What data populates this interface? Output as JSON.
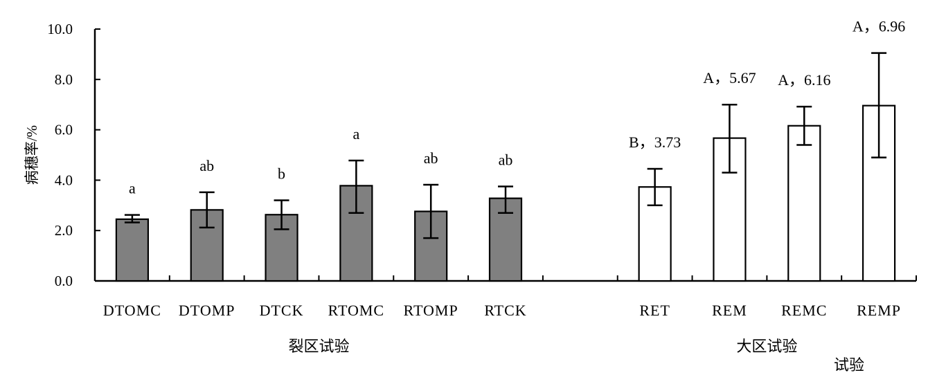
{
  "chart_data": {
    "type": "bar",
    "ylabel": "病穗率/%",
    "xlabel": "试验",
    "ylim": [
      0,
      10
    ],
    "yticks": [
      "0.0",
      "2.0",
      "4.0",
      "6.0",
      "8.0",
      "10.0"
    ],
    "grid": false,
    "groups": [
      {
        "label": "裂区试验",
        "fill": "#808080",
        "bars": [
          {
            "category": "DTOMC",
            "value": 2.45,
            "err_low": 2.32,
            "err_high": 2.62,
            "label": "a"
          },
          {
            "category": "DTOMP",
            "value": 2.82,
            "err_low": 2.12,
            "err_high": 3.52,
            "label": "ab"
          },
          {
            "category": "DTCK",
            "value": 2.63,
            "err_low": 2.05,
            "err_high": 3.2,
            "label": "b"
          },
          {
            "category": "RTOMC",
            "value": 3.78,
            "err_low": 2.7,
            "err_high": 4.78,
            "label": "a"
          },
          {
            "category": "RTOMP",
            "value": 2.76,
            "err_low": 1.7,
            "err_high": 3.82,
            "label": "ab"
          },
          {
            "category": "RTCK",
            "value": 3.28,
            "err_low": 2.7,
            "err_high": 3.75,
            "label": "ab"
          }
        ]
      },
      {
        "label": "大区试验",
        "fill": "#ffffff",
        "bars": [
          {
            "category": "RET",
            "value": 3.73,
            "err_low": 3.0,
            "err_high": 4.45,
            "label": "B，3.73"
          },
          {
            "category": "REM",
            "value": 5.67,
            "err_low": 4.3,
            "err_high": 7.0,
            "label": "A，5.67"
          },
          {
            "category": "REMC",
            "value": 6.16,
            "err_low": 5.4,
            "err_high": 6.92,
            "label": "A，6.16"
          },
          {
            "category": "REMP",
            "value": 6.96,
            "err_low": 4.9,
            "err_high": 9.05,
            "label": "A，6.96"
          }
        ]
      }
    ]
  }
}
